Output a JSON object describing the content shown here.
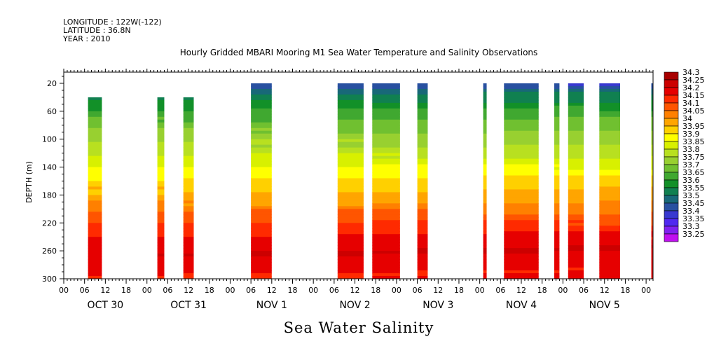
{
  "header": {
    "longitude": "LONGITUDE : 122W(-122)",
    "latitude": "LATITUDE : 36.8N",
    "year": "YEAR : 2010"
  },
  "chart_data": {
    "type": "heatmap",
    "title": "Hourly Gridded MBARI Mooring M1 Sea Water Temperature and Salinity Observations",
    "bottom_title": "Sea Water Salinity",
    "ylabel": "DEPTH (m)",
    "y_ticks": [
      20,
      60,
      100,
      140,
      180,
      220,
      260,
      300
    ],
    "ylim": [
      300,
      4
    ],
    "x_hour_ticks": [
      "00",
      "06",
      "12",
      "18",
      "00",
      "06",
      "12",
      "18",
      "00",
      "06",
      "12",
      "18",
      "00",
      "06",
      "12",
      "18",
      "00",
      "06",
      "12",
      "18",
      "00",
      "06",
      "12",
      "18",
      "00",
      "06",
      "12",
      "18",
      "00"
    ],
    "x_date_labels": [
      "OCT 30",
      "OCT 31",
      "NOV  1",
      "NOV  2",
      "NOV  3",
      "NOV  4",
      "NOV  5"
    ],
    "x_range_hours": [
      0,
      170
    ],
    "colorbar": {
      "levels": [
        34.3,
        34.25,
        34.2,
        34.15,
        34.1,
        34.05,
        34,
        33.95,
        33.9,
        33.85,
        33.8,
        33.75,
        33.7,
        33.65,
        33.6,
        33.55,
        33.5,
        33.45,
        33.4,
        33.35,
        33.3,
        33.25
      ],
      "colors": [
        "#a80000",
        "#cc0000",
        "#e60000",
        "#ff2a00",
        "#ff5500",
        "#ff8000",
        "#ffa500",
        "#ffd000",
        "#ffff00",
        "#d8f000",
        "#b8e020",
        "#98d030",
        "#70c030",
        "#40a830",
        "#129028",
        "#108050",
        "#186878",
        "#2850a0",
        "#3838d0",
        "#5028f0",
        "#8020f0",
        "#c010f0"
      ]
    },
    "observation_segments": [
      {
        "start_hour": 7,
        "end_hour": 11,
        "top_depth": 40
      },
      {
        "start_hour": 27,
        "end_hour": 29,
        "top_depth": 40
      },
      {
        "start_hour": 34.5,
        "end_hour": 37.5,
        "top_depth": 40
      },
      {
        "start_hour": 54,
        "end_hour": 60,
        "top_depth": 20
      },
      {
        "start_hour": 79,
        "end_hour": 86.5,
        "top_depth": 20
      },
      {
        "start_hour": 89,
        "end_hour": 97,
        "top_depth": 20
      },
      {
        "start_hour": 102,
        "end_hour": 105,
        "top_depth": 20
      },
      {
        "start_hour": 121,
        "end_hour": 122,
        "top_depth": 20
      },
      {
        "start_hour": 127,
        "end_hour": 137,
        "top_depth": 20
      },
      {
        "start_hour": 141.5,
        "end_hour": 143,
        "top_depth": 20
      },
      {
        "start_hour": 145.5,
        "end_hour": 150,
        "top_depth": 20
      },
      {
        "start_hour": 154.5,
        "end_hour": 160.5,
        "top_depth": 20
      },
      {
        "start_hour": 169.5,
        "end_hour": 170,
        "top_depth": 20
      }
    ],
    "salinity_profile": [
      {
        "depth": 20,
        "value": 33.45
      },
      {
        "depth": 35,
        "value": 33.55
      },
      {
        "depth": 50,
        "value": 33.62
      },
      {
        "depth": 70,
        "value": 33.7
      },
      {
        "depth": 95,
        "value": 33.77
      },
      {
        "depth": 120,
        "value": 33.83
      },
      {
        "depth": 140,
        "value": 33.9
      },
      {
        "depth": 160,
        "value": 33.97
      },
      {
        "depth": 185,
        "value": 34.03
      },
      {
        "depth": 210,
        "value": 34.12
      },
      {
        "depth": 235,
        "value": 34.2
      },
      {
        "depth": 260,
        "value": 34.25
      },
      {
        "depth": 280,
        "value": 34.22
      },
      {
        "depth": 300,
        "value": 34.2
      }
    ]
  }
}
